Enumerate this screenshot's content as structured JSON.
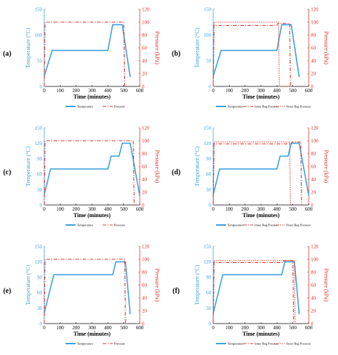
{
  "colors": {
    "temperature": "#3aa0dc",
    "pressure": "#e0302a",
    "axis": "#000000"
  },
  "chart_data": [
    {
      "type": "line",
      "label": "(a)",
      "xlabel": "Time (minutes)",
      "ylabel_left": "Temperature (°C)",
      "ylabel_right": "Pressure (kPa)",
      "xlim": [
        0,
        600
      ],
      "xticks": [
        "0",
        "100",
        "200",
        "300",
        "400",
        "500",
        "600"
      ],
      "ylim_left": [
        0,
        150
      ],
      "yticks_left": [
        "0",
        "50",
        "100",
        "150"
      ],
      "ylim_right": [
        0,
        120
      ],
      "yticks_right": [
        "0",
        "20",
        "40",
        "60",
        "80",
        "100",
        "120"
      ],
      "series": [
        {
          "name": "Temperature",
          "axis": "left",
          "style": "solid",
          "x": [
            0,
            50,
            400,
            430,
            490,
            540
          ],
          "y": [
            20,
            70,
            70,
            120,
            120,
            18
          ]
        },
        {
          "name": "Pressure",
          "axis": "right",
          "style": "dashdot",
          "x": [
            0,
            5,
            500,
            505
          ],
          "y": [
            0,
            100,
            100,
            0
          ]
        }
      ],
      "legend": [
        "Temperature",
        "Pressure"
      ]
    },
    {
      "type": "line",
      "label": "(b)",
      "xlabel": "Time (minutes)",
      "ylabel_left": "Temperature (°C)",
      "ylabel_right": "Pressure (kPa)",
      "xlim": [
        0,
        600
      ],
      "xticks": [
        "0",
        "100",
        "200",
        "300",
        "400",
        "500",
        "600"
      ],
      "ylim_left": [
        0,
        150
      ],
      "yticks_left": [
        "0",
        "50",
        "100",
        "150"
      ],
      "ylim_right": [
        0,
        120
      ],
      "yticks_right": [
        "0",
        "20",
        "40",
        "60",
        "80",
        "100",
        "120"
      ],
      "series": [
        {
          "name": "Temperature",
          "axis": "left",
          "style": "solid",
          "x": [
            0,
            50,
            400,
            430,
            490,
            540
          ],
          "y": [
            20,
            70,
            70,
            120,
            120,
            18
          ]
        },
        {
          "name": "Inner Bag Pressure",
          "axis": "right",
          "style": "dashdot",
          "x": [
            0,
            5,
            400,
            405,
            480,
            485
          ],
          "y": [
            0,
            95,
            95,
            98,
            98,
            0
          ]
        },
        {
          "name": "Outer Bag Pressure",
          "axis": "right",
          "style": "dotted",
          "x": [
            0,
            5,
            410,
            415,
            490,
            495
          ],
          "y": [
            0,
            100,
            100,
            0,
            0,
            0
          ]
        }
      ],
      "legend": [
        "Temperature",
        "Inner Bag Pressure",
        "Outer Bag Pressure"
      ]
    },
    {
      "type": "line",
      "label": "(c)",
      "xlabel": "Time (minutes)",
      "ylabel_left": "Temperature (°C)",
      "ylabel_right": "Pressure (kPa)",
      "xlim": [
        0,
        600
      ],
      "xticks": [
        "0",
        "100",
        "200",
        "300",
        "400",
        "500",
        "600"
      ],
      "ylim_left": [
        0,
        150
      ],
      "yticks_left": [
        "0",
        "30",
        "60",
        "90",
        "120",
        "150"
      ],
      "ylim_right": [
        0,
        120
      ],
      "yticks_right": [
        "0",
        "20",
        "40",
        "60",
        "80",
        "100",
        "120"
      ],
      "series": [
        {
          "name": "Temperature",
          "axis": "left",
          "style": "solid",
          "x": [
            0,
            40,
            400,
            420,
            470,
            490,
            540,
            600
          ],
          "y": [
            20,
            70,
            70,
            95,
            95,
            120,
            120,
            18
          ]
        },
        {
          "name": "Pressure",
          "axis": "right",
          "style": "dashdot",
          "x": [
            0,
            5,
            560,
            565
          ],
          "y": [
            0,
            100,
            100,
            0
          ]
        }
      ],
      "legend": [
        "Temperature",
        "Pressure"
      ]
    },
    {
      "type": "line",
      "label": "(d)",
      "xlabel": "Time (minutes)",
      "ylabel_left": "Temperature (°C)",
      "ylabel_right": "Pressure (kPa)",
      "xlim": [
        0,
        600
      ],
      "xticks": [
        "0",
        "100",
        "200",
        "300",
        "400",
        "500",
        "600"
      ],
      "ylim_left": [
        0,
        150
      ],
      "yticks_left": [
        "0",
        "30",
        "60",
        "90",
        "120",
        "150"
      ],
      "ylim_right": [
        0,
        120
      ],
      "yticks_right": [
        "0",
        "20",
        "40",
        "60",
        "80",
        "100",
        "120"
      ],
      "series": [
        {
          "name": "Temperature",
          "axis": "left",
          "style": "solid",
          "x": [
            0,
            40,
            400,
            420,
            470,
            490,
            540,
            600
          ],
          "y": [
            20,
            70,
            70,
            95,
            95,
            120,
            120,
            18
          ]
        },
        {
          "name": "Inner Bag Pressure",
          "axis": "right",
          "style": "dashdot",
          "x": [
            0,
            5,
            490,
            495,
            550,
            555
          ],
          "y": [
            0,
            95,
            95,
            98,
            98,
            0
          ]
        },
        {
          "name": "Outer Bag Pressure",
          "axis": "right",
          "style": "dotted",
          "x": [
            0,
            5,
            480,
            485
          ],
          "y": [
            0,
            98,
            98,
            0
          ]
        }
      ],
      "legend": [
        "Temperature",
        "Inner Bag Pressure",
        "Outer Bag Pressure"
      ]
    },
    {
      "type": "line",
      "label": "(e)",
      "xlabel": "Time (minutes)",
      "ylabel_left": "Temperature (°C)",
      "ylabel_right": "Pressure (kPa)",
      "xlim": [
        0,
        600
      ],
      "xticks": [
        "0",
        "100",
        "200",
        "300",
        "400",
        "500",
        "600"
      ],
      "ylim_left": [
        0,
        150
      ],
      "yticks_left": [
        "0",
        "30",
        "60",
        "90",
        "120",
        "150"
      ],
      "ylim_right": [
        0,
        120
      ],
      "yticks_right": [
        "0",
        "20",
        "40",
        "60",
        "80",
        "100",
        "120"
      ],
      "series": [
        {
          "name": "Temperature",
          "axis": "left",
          "style": "solid",
          "x": [
            0,
            60,
            430,
            450,
            510,
            540
          ],
          "y": [
            20,
            95,
            95,
            120,
            120,
            18
          ]
        },
        {
          "name": "Pressure",
          "axis": "right",
          "style": "dashdot",
          "x": [
            0,
            5,
            505,
            510
          ],
          "y": [
            0,
            100,
            100,
            0
          ]
        }
      ],
      "legend": [
        "Temperature",
        "Pressure"
      ]
    },
    {
      "type": "line",
      "label": "(f)",
      "xlabel": "Time (minutes)",
      "ylabel_left": "Temperature (°C)",
      "ylabel_right": "Pressure (kPa)",
      "xlim": [
        0,
        600
      ],
      "xticks": [
        "0",
        "100",
        "200",
        "300",
        "400",
        "500",
        "600"
      ],
      "ylim_left": [
        0,
        150
      ],
      "yticks_left": [
        "0",
        "30",
        "60",
        "90",
        "120",
        "150"
      ],
      "ylim_right": [
        0,
        120
      ],
      "yticks_right": [
        "0",
        "20",
        "40",
        "60",
        "80",
        "100",
        "120"
      ],
      "series": [
        {
          "name": "Temperature",
          "axis": "left",
          "style": "solid",
          "x": [
            0,
            60,
            430,
            450,
            510,
            540
          ],
          "y": [
            20,
            95,
            95,
            120,
            120,
            18
          ]
        },
        {
          "name": "Inner Bag Pressure",
          "axis": "right",
          "style": "dashdot",
          "x": [
            0,
            5,
            440,
            445,
            500,
            505
          ],
          "y": [
            0,
            95,
            95,
            98,
            98,
            0
          ]
        },
        {
          "name": "Outer Bag Pressure",
          "axis": "right",
          "style": "dotted",
          "x": [
            0,
            5,
            510,
            515
          ],
          "y": [
            0,
            98,
            98,
            0
          ]
        }
      ],
      "legend": [
        "Temperature",
        "Inner Bag Pressure",
        "Outer Bag Pressure"
      ]
    }
  ]
}
